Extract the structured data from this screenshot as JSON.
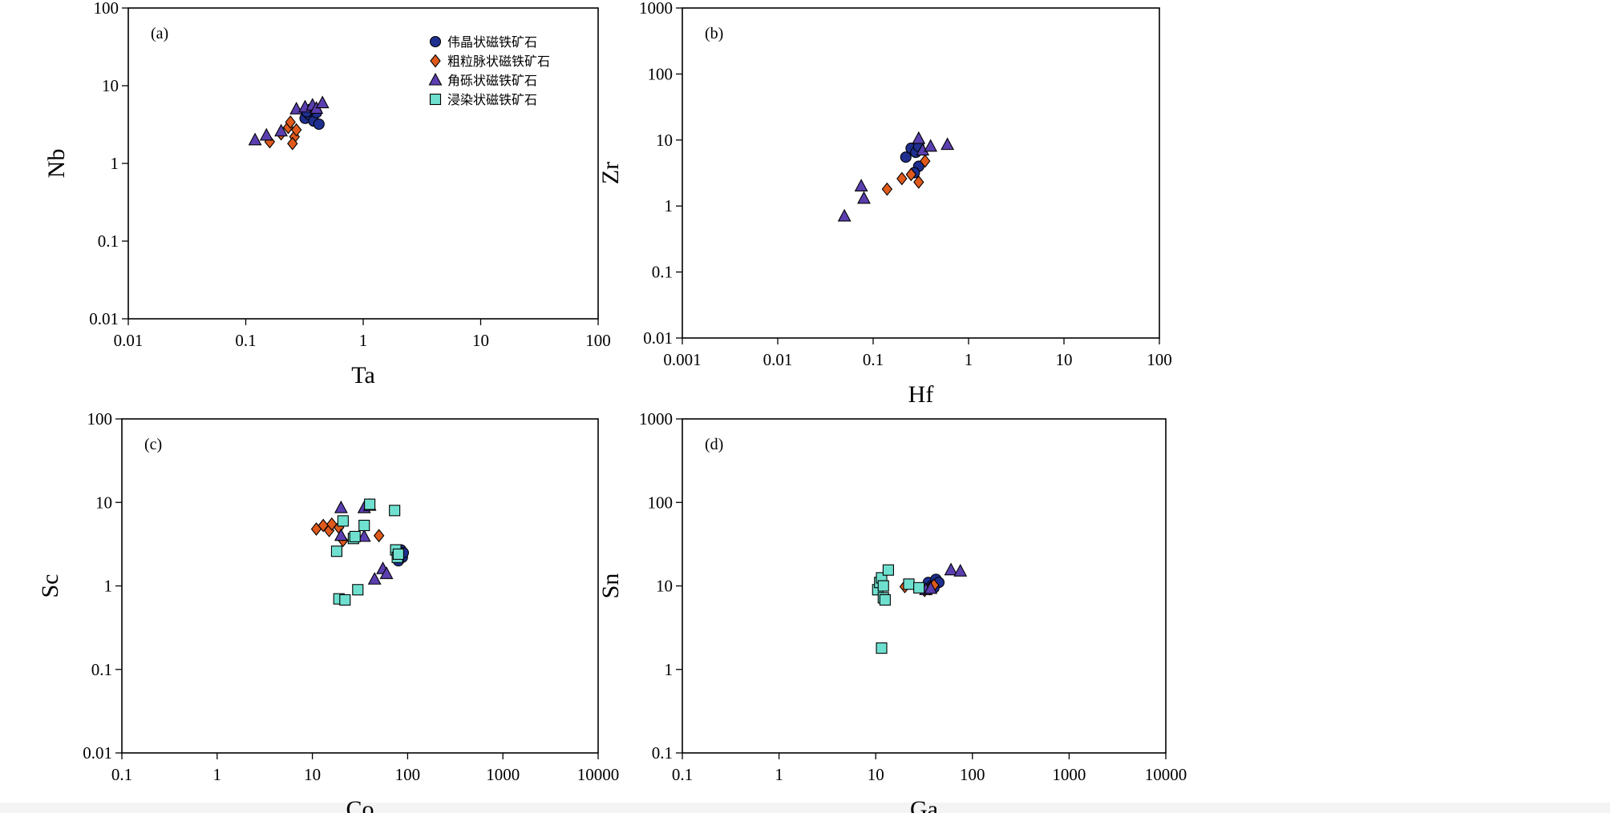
{
  "colors": {
    "pegmatitic": "#1f2f8f",
    "vein": "#e05a1c",
    "breccia": "#5b3fb0",
    "disseminated": "#6fe0cf",
    "frame": "#000000"
  },
  "legend": [
    {
      "name": "伟晶状磁铁矿石",
      "marker": "circle-icon",
      "color": "#1f2f8f"
    },
    {
      "name": "粗粒脉状磁铁矿石",
      "marker": "diamond-icon",
      "color": "#e05a1c"
    },
    {
      "name": "角砾状磁铁矿石",
      "marker": "triangle-icon",
      "color": "#5b3fb0"
    },
    {
      "name": "浸染状磁铁矿石",
      "marker": "square-icon",
      "color": "#6fe0cf"
    }
  ],
  "chart_data": [
    {
      "panel": "(a)",
      "type": "scatter",
      "xscale": "log",
      "yscale": "log",
      "xlabel": "Ta",
      "ylabel": "Nb",
      "xlim": [
        0.01,
        100
      ],
      "ylim": [
        0.01,
        100
      ],
      "xticks": [
        "0.01",
        "0.1",
        "1",
        "10",
        "100"
      ],
      "yticks": [
        "0.01",
        "0.1",
        "1",
        "10",
        "100"
      ],
      "legend_position": "top-right",
      "series": [
        {
          "name": "伟晶状磁铁矿石",
          "points": [
            [
              0.32,
              3.8
            ],
            [
              0.35,
              4.2
            ],
            [
              0.38,
              3.5
            ],
            [
              0.4,
              4.5
            ],
            [
              0.42,
              3.2
            ],
            [
              0.36,
              5.0
            ],
            [
              0.33,
              4.6
            ]
          ]
        },
        {
          "name": "粗粒脉状磁铁矿石",
          "points": [
            [
              0.16,
              1.9
            ],
            [
              0.2,
              2.4
            ],
            [
              0.23,
              2.9
            ],
            [
              0.24,
              3.4
            ],
            [
              0.26,
              2.2
            ],
            [
              0.27,
              2.7
            ],
            [
              0.25,
              1.8
            ]
          ]
        },
        {
          "name": "角砾状磁铁矿石",
          "points": [
            [
              0.12,
              2.0
            ],
            [
              0.15,
              2.3
            ],
            [
              0.2,
              2.6
            ],
            [
              0.27,
              5.0
            ],
            [
              0.32,
              5.3
            ],
            [
              0.37,
              5.6
            ],
            [
              0.4,
              5.1
            ],
            [
              0.45,
              6.0
            ]
          ]
        },
        {
          "name": "浸染状磁铁矿石",
          "points": []
        }
      ]
    },
    {
      "panel": "(b)",
      "type": "scatter",
      "xscale": "log",
      "yscale": "log",
      "xlabel": "Hf",
      "ylabel": "Zr",
      "xlim": [
        0.001,
        100
      ],
      "ylim": [
        0.01,
        1000
      ],
      "xticks": [
        "0.001",
        "0.01",
        "0.1",
        "1",
        "10",
        "100"
      ],
      "yticks": [
        "0.01",
        "0.1",
        "1",
        "10",
        "100",
        "1000"
      ],
      "series": [
        {
          "name": "伟晶状磁铁矿石",
          "points": [
            [
              0.22,
              5.5
            ],
            [
              0.25,
              7.5
            ],
            [
              0.28,
              6.5
            ],
            [
              0.3,
              4.0
            ],
            [
              0.3,
              8.0
            ],
            [
              0.27,
              3.2
            ]
          ]
        },
        {
          "name": "粗粒脉状磁铁矿石",
          "points": [
            [
              0.14,
              1.8
            ],
            [
              0.2,
              2.6
            ],
            [
              0.25,
              3.0
            ],
            [
              0.3,
              2.3
            ],
            [
              0.35,
              4.8
            ]
          ]
        },
        {
          "name": "角砾状磁铁矿石",
          "points": [
            [
              0.05,
              0.7
            ],
            [
              0.075,
              2.0
            ],
            [
              0.08,
              1.3
            ],
            [
              0.3,
              10.5
            ],
            [
              0.33,
              7.0
            ],
            [
              0.4,
              8.0
            ],
            [
              0.6,
              8.5
            ]
          ]
        },
        {
          "name": "浸染状磁铁矿石",
          "points": []
        }
      ]
    },
    {
      "panel": "(c)",
      "type": "scatter",
      "xscale": "log",
      "yscale": "log",
      "xlabel": "Co",
      "ylabel": "Sc",
      "xlim": [
        0.1,
        10000
      ],
      "ylim": [
        0.01,
        100
      ],
      "xticks": [
        "0.1",
        "1",
        "10",
        "100",
        "1000",
        "10000"
      ],
      "yticks": [
        "0.01",
        "0.1",
        "1",
        "10",
        "100"
      ],
      "series": [
        {
          "name": "伟晶状磁铁矿石",
          "points": [
            [
              85,
              2.7
            ],
            [
              88,
              2.2
            ],
            [
              80,
              2.0
            ],
            [
              90,
              2.5
            ]
          ]
        },
        {
          "name": "粗粒脉状磁铁矿石",
          "points": [
            [
              11,
              4.8
            ],
            [
              13,
              5.3
            ],
            [
              15,
              4.6
            ],
            [
              16,
              5.5
            ],
            [
              19,
              5.0
            ],
            [
              21,
              3.5
            ],
            [
              50,
              4.0
            ]
          ]
        },
        {
          "name": "角砾状磁铁矿石",
          "points": [
            [
              20,
              8.6
            ],
            [
              20,
              4.0
            ],
            [
              35,
              3.9
            ],
            [
              35,
              8.6
            ],
            [
              40,
              9.2
            ],
            [
              45,
              1.2
            ],
            [
              55,
              1.6
            ],
            [
              60,
              1.4
            ]
          ]
        },
        {
          "name": "浸染状磁铁矿石",
          "points": [
            [
              18,
              2.6
            ],
            [
              21,
              6.0
            ],
            [
              27,
              3.7
            ],
            [
              28,
              3.9
            ],
            [
              30,
              0.9
            ],
            [
              35,
              5.3
            ],
            [
              40,
              9.5
            ],
            [
              73,
              8.0
            ],
            [
              75,
              2.7
            ],
            [
              78,
              2.2
            ],
            [
              80,
              2.4
            ],
            [
              19,
              0.7
            ],
            [
              22,
              0.68
            ]
          ]
        }
      ]
    },
    {
      "panel": "(d)",
      "type": "scatter",
      "xscale": "log",
      "yscale": "log",
      "xlabel": "Ga",
      "ylabel": "Sn",
      "xlim": [
        0.1,
        10000
      ],
      "ylim": [
        0.1,
        1000
      ],
      "xticks": [
        "0.1",
        "1",
        "10",
        "100",
        "1000",
        "10000"
      ],
      "yticks": [
        "0.1",
        "1",
        "10",
        "100",
        "1000"
      ],
      "series": [
        {
          "name": "伟晶状磁铁矿石",
          "points": [
            [
              35,
              11
            ],
            [
              38,
              10
            ],
            [
              42,
              12
            ],
            [
              45,
              11
            ],
            [
              40,
              9.5
            ]
          ]
        },
        {
          "name": "粗粒脉状磁铁矿石",
          "points": [
            [
              20,
              9.8
            ],
            [
              32,
              8.8
            ],
            [
              36,
              9.2
            ],
            [
              40,
              10.2
            ]
          ]
        },
        {
          "name": "角砾状磁铁矿石",
          "points": [
            [
              33,
              9.0
            ],
            [
              37,
              9.3
            ],
            [
              60,
              15.5
            ],
            [
              75,
              15.0
            ]
          ]
        },
        {
          "name": "浸染状磁铁矿石",
          "points": [
            [
              10.5,
              9.0
            ],
            [
              11,
              11
            ],
            [
              11.5,
              12.5
            ],
            [
              12,
              10
            ],
            [
              12,
              7.2
            ],
            [
              12.5,
              6.8
            ],
            [
              13.5,
              15.5
            ],
            [
              22,
              10.5
            ],
            [
              28,
              9.5
            ],
            [
              11.5,
              1.8
            ]
          ]
        }
      ]
    }
  ]
}
